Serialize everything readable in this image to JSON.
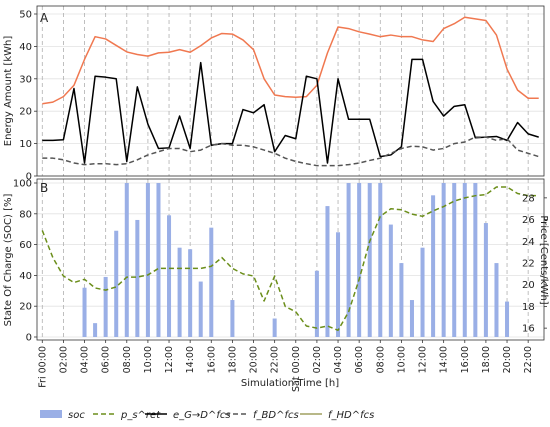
{
  "figure": {
    "xlabel": "Simulation Time [h]",
    "panelA_label": "A",
    "panelB_label": "B",
    "legend": [
      {
        "key": "soc",
        "label": "soc",
        "kind": "bar",
        "color": "#9AAFE6"
      },
      {
        "key": "price",
        "label": "p_s^ret",
        "kind": "dash",
        "color": "#6B8E1A"
      },
      {
        "key": "e_gd",
        "label": "e_G→D^fcs",
        "kind": "solid",
        "color": "#000000"
      },
      {
        "key": "e_bd",
        "label": "f_BD^fcs",
        "kind": "dash",
        "color": "#555555"
      },
      {
        "key": "e_hd",
        "label": "f_HD^fcs",
        "kind": "solid",
        "color": "#A0A060"
      }
    ]
  },
  "chart_data": [
    {
      "type": "line",
      "panel": "A",
      "ylabel": "Energy Amount [kWh]",
      "ylim": [
        0,
        50
      ],
      "yticks": [
        0,
        10,
        20,
        30,
        40,
        50
      ],
      "grid": true,
      "x_unit": "hours from Fri 00:00",
      "xlim": [
        -0.5,
        47.5
      ],
      "series": [
        {
          "name": "f_HD^fcs",
          "color": "#F07850",
          "style": "solid",
          "x": [
            0,
            1,
            2,
            3,
            4,
            5,
            6,
            7,
            8,
            9,
            10,
            11,
            12,
            13,
            14,
            15,
            16,
            17,
            18,
            19,
            20,
            21,
            22,
            23,
            24,
            25,
            26,
            27,
            28,
            29,
            30,
            31,
            32,
            33,
            34,
            35,
            36,
            37,
            38,
            39,
            40,
            41,
            42,
            43,
            44,
            45,
            46,
            47
          ],
          "values": [
            22.3,
            22.8,
            24.5,
            28,
            36,
            43,
            42.3,
            40.3,
            38.3,
            37.5,
            37,
            38,
            38.2,
            39,
            38.2,
            40.2,
            42.6,
            44,
            43.8,
            42,
            39,
            30,
            25,
            24.5,
            24.3,
            24.5,
            28,
            38,
            46,
            45.5,
            44.5,
            43.8,
            43,
            43.5,
            43,
            43,
            42,
            41.5,
            45.5,
            47,
            49,
            48.5,
            48,
            43.5,
            33,
            26.5,
            24,
            24
          ]
        },
        {
          "name": "e_G→D^fcs",
          "color": "#000000",
          "style": "solid",
          "x": [
            0,
            1,
            2,
            3,
            4,
            5,
            6,
            7,
            8,
            9,
            10,
            11,
            12,
            13,
            14,
            15,
            16,
            17,
            18,
            19,
            20,
            21,
            22,
            23,
            24,
            25,
            26,
            27,
            28,
            29,
            30,
            31,
            32,
            33,
            34,
            35,
            36,
            37,
            38,
            39,
            40,
            41,
            42,
            43,
            44,
            45,
            46,
            47
          ],
          "values": [
            11,
            11,
            11.2,
            27,
            4,
            30.8,
            30.5,
            30,
            4.5,
            27.5,
            16,
            8.5,
            8.7,
            18.5,
            8.5,
            35,
            9.5,
            10,
            10,
            20.5,
            19.5,
            22,
            7.5,
            12.5,
            11.5,
            30.8,
            30,
            4,
            30,
            17.5,
            17.5,
            17.5,
            6,
            6.5,
            9,
            36,
            36,
            23,
            18.5,
            21.5,
            22,
            11.8,
            12,
            12.2,
            11,
            16.5,
            13,
            12
          ]
        },
        {
          "name": "f_BD^fcs",
          "color": "#555555",
          "style": "dash",
          "x": [
            0,
            1,
            2,
            3,
            4,
            5,
            6,
            7,
            8,
            9,
            10,
            11,
            12,
            13,
            14,
            15,
            16,
            17,
            18,
            19,
            20,
            21,
            22,
            23,
            24,
            25,
            26,
            27,
            28,
            29,
            30,
            31,
            32,
            33,
            34,
            35,
            36,
            37,
            38,
            39,
            40,
            41,
            42,
            43,
            44,
            45,
            46,
            47
          ],
          "values": [
            5.5,
            5.5,
            5,
            4,
            3.5,
            3.8,
            3.8,
            3.5,
            3.8,
            5,
            6.5,
            7.5,
            8.5,
            8.5,
            7.5,
            8,
            9.5,
            10,
            9.5,
            9.5,
            9,
            8,
            7,
            5.5,
            4.5,
            3.8,
            3.2,
            3.2,
            3.2,
            3.5,
            4,
            4.8,
            5.5,
            7,
            8.5,
            9.2,
            9,
            8,
            8.5,
            10,
            10.5,
            12,
            12,
            11,
            11.5,
            8,
            7,
            6
          ]
        }
      ]
    },
    {
      "type": "bar",
      "panel": "B",
      "ylabel": "State Of Charge (SOC) [%]",
      "y2label": "Price [Cents/kWh]",
      "ylim": [
        0,
        100
      ],
      "yticks": [
        0,
        20,
        40,
        60,
        80,
        100
      ],
      "y2lim": [
        15,
        29
      ],
      "y2ticks": [
        16,
        18,
        20,
        22,
        24,
        26,
        28
      ],
      "grid": true,
      "xlim": [
        -0.5,
        47.5
      ],
      "x_ticks": [
        {
          "h": 0,
          "label": "Fri 00:00"
        },
        {
          "h": 2,
          "label": "02:00"
        },
        {
          "h": 4,
          "label": "04:00"
        },
        {
          "h": 6,
          "label": "06:00"
        },
        {
          "h": 8,
          "label": "08:00"
        },
        {
          "h": 10,
          "label": "10:00"
        },
        {
          "h": 12,
          "label": "12:00"
        },
        {
          "h": 14,
          "label": "14:00"
        },
        {
          "h": 16,
          "label": "16:00"
        },
        {
          "h": 18,
          "label": "18:00"
        },
        {
          "h": 20,
          "label": "20:00"
        },
        {
          "h": 22,
          "label": "22:00"
        },
        {
          "h": 24,
          "label": "Sat 00:00"
        },
        {
          "h": 26,
          "label": "02:00"
        },
        {
          "h": 28,
          "label": "04:00"
        },
        {
          "h": 30,
          "label": "06:00"
        },
        {
          "h": 32,
          "label": "08:00"
        },
        {
          "h": 34,
          "label": "10:00"
        },
        {
          "h": 36,
          "label": "12:00"
        },
        {
          "h": 38,
          "label": "14:00"
        },
        {
          "h": 40,
          "label": "16:00"
        },
        {
          "h": 42,
          "label": "18:00"
        },
        {
          "h": 44,
          "label": "20:00"
        },
        {
          "h": 46,
          "label": "22:00"
        }
      ],
      "soc_bars": {
        "name": "soc",
        "color": "#9AAFE6",
        "x": [
          0,
          1,
          2,
          3,
          4,
          5,
          6,
          7,
          8,
          9,
          10,
          11,
          12,
          13,
          14,
          15,
          16,
          17,
          18,
          19,
          20,
          21,
          22,
          23,
          24,
          25,
          26,
          27,
          28,
          29,
          30,
          31,
          32,
          33,
          34,
          35,
          36,
          37,
          38,
          39,
          40,
          41,
          42,
          43,
          44,
          45,
          46,
          47
        ],
        "values": [
          0,
          0,
          0,
          0,
          32,
          9,
          39,
          69,
          100,
          76,
          100,
          100,
          79,
          58,
          57,
          36,
          71,
          0,
          24,
          0,
          0,
          0,
          12,
          0,
          0,
          0,
          43,
          85,
          68,
          100,
          100,
          100,
          100,
          73,
          48,
          24,
          58,
          92,
          100,
          100,
          100,
          100,
          74,
          48,
          23,
          0,
          0,
          0
        ]
      },
      "price_series": {
        "name": "p_s^ret",
        "color": "#6B8E1A",
        "style": "dash",
        "axis": "right",
        "x": [
          0,
          1,
          2,
          3,
          4,
          5,
          6,
          7,
          8,
          9,
          10,
          11,
          12,
          13,
          14,
          15,
          16,
          17,
          18,
          19,
          20,
          21,
          22,
          23,
          24,
          25,
          26,
          27,
          28,
          29,
          30,
          31,
          32,
          33,
          34,
          35,
          36,
          37,
          38,
          39,
          40,
          41,
          42,
          43,
          44,
          45,
          46,
          47
        ],
        "values": [
          25,
          22.5,
          20.8,
          20.2,
          20.5,
          19.7,
          19.5,
          19.8,
          20.7,
          20.7,
          20.9,
          21.5,
          21.5,
          21.5,
          21.5,
          21.5,
          21.7,
          22.5,
          21.5,
          21,
          20.8,
          18.5,
          20.8,
          18,
          17.5,
          16.2,
          16,
          16.2,
          15.8,
          17.5,
          20.5,
          24,
          26.3,
          27,
          26.9,
          26.5,
          26.3,
          26.8,
          27.2,
          27.7,
          28,
          28.2,
          28.3,
          29,
          29,
          28.4,
          28.2,
          28.2
        ]
      }
    }
  ]
}
